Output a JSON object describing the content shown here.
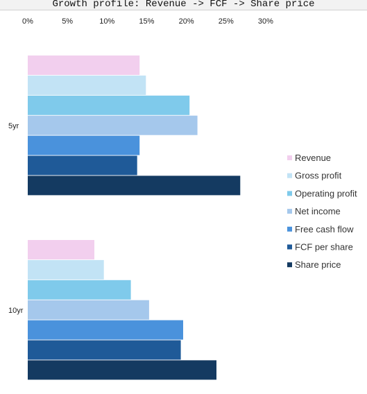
{
  "title": "Growth profile: Revenue -> FCF -> Share price",
  "chart_data": {
    "type": "bar",
    "orientation": "horizontal",
    "title": "Growth profile: Revenue -> FCF -> Share price",
    "xlabel": "",
    "ylabel": "",
    "xlim": [
      0,
      30
    ],
    "x_ticks": [
      "0%",
      "5%",
      "10%",
      "15%",
      "20%",
      "25%",
      "30%"
    ],
    "x_tick_values": [
      0,
      5,
      10,
      15,
      20,
      25,
      30
    ],
    "x_axis_position": "top",
    "grid": false,
    "legend_position": "right",
    "categories": [
      "5yr",
      "10yr"
    ],
    "series": [
      {
        "name": "Revenue",
        "color": "#f2cfee",
        "values": [
          14.1,
          8.4
        ]
      },
      {
        "name": "Gross profit",
        "color": "#c2e3f5",
        "values": [
          14.9,
          9.6
        ]
      },
      {
        "name": "Operating profit",
        "color": "#7fcaeb",
        "values": [
          20.4,
          13.0
        ]
      },
      {
        "name": "Net income",
        "color": "#a5c8ec",
        "values": [
          21.4,
          15.3
        ]
      },
      {
        "name": "Free cash flow",
        "color": "#4a92dc",
        "values": [
          14.1,
          19.6
        ]
      },
      {
        "name": "FCF per share",
        "color": "#1f5a98",
        "values": [
          13.8,
          19.3
        ]
      },
      {
        "name": "Share price",
        "color": "#143a61",
        "values": [
          26.8,
          23.8
        ]
      }
    ]
  }
}
